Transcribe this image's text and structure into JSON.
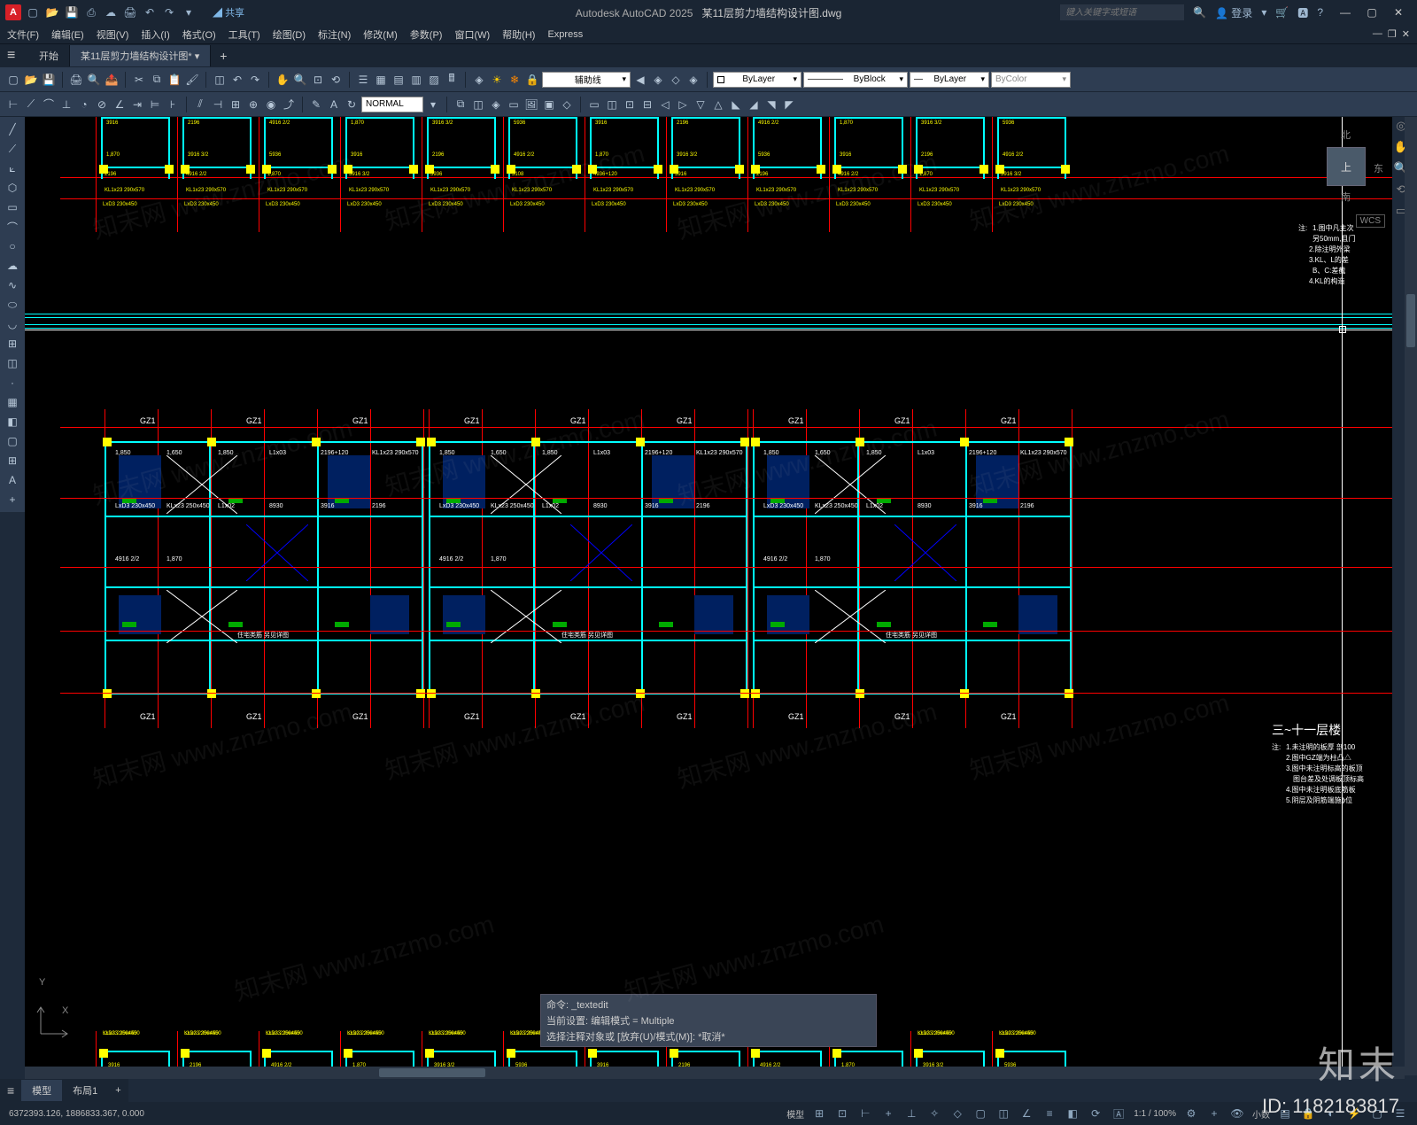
{
  "app": {
    "name": "Autodesk AutoCAD 2025",
    "file": "某11层剪力墙结构设计图.dwg"
  },
  "titlebar": {
    "share": "共享",
    "search_placeholder": "键入关键字或短语",
    "login": "登录"
  },
  "menu": [
    "文件(F)",
    "编辑(E)",
    "视图(V)",
    "插入(I)",
    "格式(O)",
    "工具(T)",
    "绘图(D)",
    "标注(N)",
    "修改(M)",
    "参数(P)",
    "窗口(W)",
    "帮助(H)",
    "Express"
  ],
  "filetabs": {
    "start": "开始",
    "active": "某11层剪力墙结构设计图*"
  },
  "ribbon": {
    "normal": "NORMAL",
    "aux_line": "辅助线",
    "layer": "ByLayer",
    "linetype": "ByBlock",
    "lineweight": "ByLayer",
    "color": "ByColor"
  },
  "viewcube": {
    "top": "上",
    "n": "北",
    "e": "东",
    "s": "南"
  },
  "wcs": "WCS",
  "ucs": {
    "x": "X",
    "y": "Y"
  },
  "drawing": {
    "upper_notes_title": "注:",
    "upper_notes": [
      "1.图中凡主次",
      "另50mm,且门",
      "2.除注明外梁",
      "3.KL、L的差",
      "B、C:差截",
      "4.KL的构造"
    ],
    "lower_title": "三~十一层楼",
    "lower_notes_title": "注:",
    "lower_notes": [
      "1.未注明的板厚 剖100",
      "2.图中GZ端为柱凸△",
      "3.图中未注明标高的板顶",
      "图台差及处调板顶标高",
      "4.图中未注明板底筋板",
      "5.阴层及阴筋端施ɸ位"
    ],
    "gz_labels": [
      "GZ1",
      "GZ1",
      "GZ1",
      "GZ1",
      "GZ1",
      "GZ1",
      "GZ1",
      "GZ1",
      "GZ1",
      "GZ1",
      "GZ1",
      "GZ1"
    ],
    "slab_label": "住宅类筋\n另见详图",
    "dims": [
      "3916",
      "2196",
      "4916 2/2",
      "1,870",
      "3916 3/2",
      "5936",
      "3108",
      "4936+120",
      "1,850",
      "1,650",
      "1,850",
      "L1x03",
      "2196+120",
      "KL1x23 290x570",
      "LxD3 230x450",
      "KLx23 250x450",
      "L1x02",
      "8930"
    ]
  },
  "cmdline": {
    "l1": "命令: _textedit",
    "l2": "当前设置: 编辑模式 = Multiple",
    "l3": "选择注释对象或 [放弃(U)/模式(M)]: *取消*"
  },
  "bottom_tabs": {
    "model": "模型",
    "layout": "布局1"
  },
  "status": {
    "coords": "6372393.126, 1886833.367, 0.000",
    "model": "模型",
    "scale": "1:1 / 100%",
    "dec": "小数"
  },
  "watermark": {
    "text": "知末网 www.znzmo.com",
    "logo": "知末",
    "id": "ID: 1182183817"
  },
  "colors": {
    "bg": "#000000",
    "ui_dark": "#1a2533",
    "ui_mid": "#2e3d52",
    "grid": "#ff0000",
    "wall": "#00ffff",
    "dim": "#ffff00",
    "slab": "#002060",
    "green": "#00aa00",
    "white": "#ffffff"
  }
}
